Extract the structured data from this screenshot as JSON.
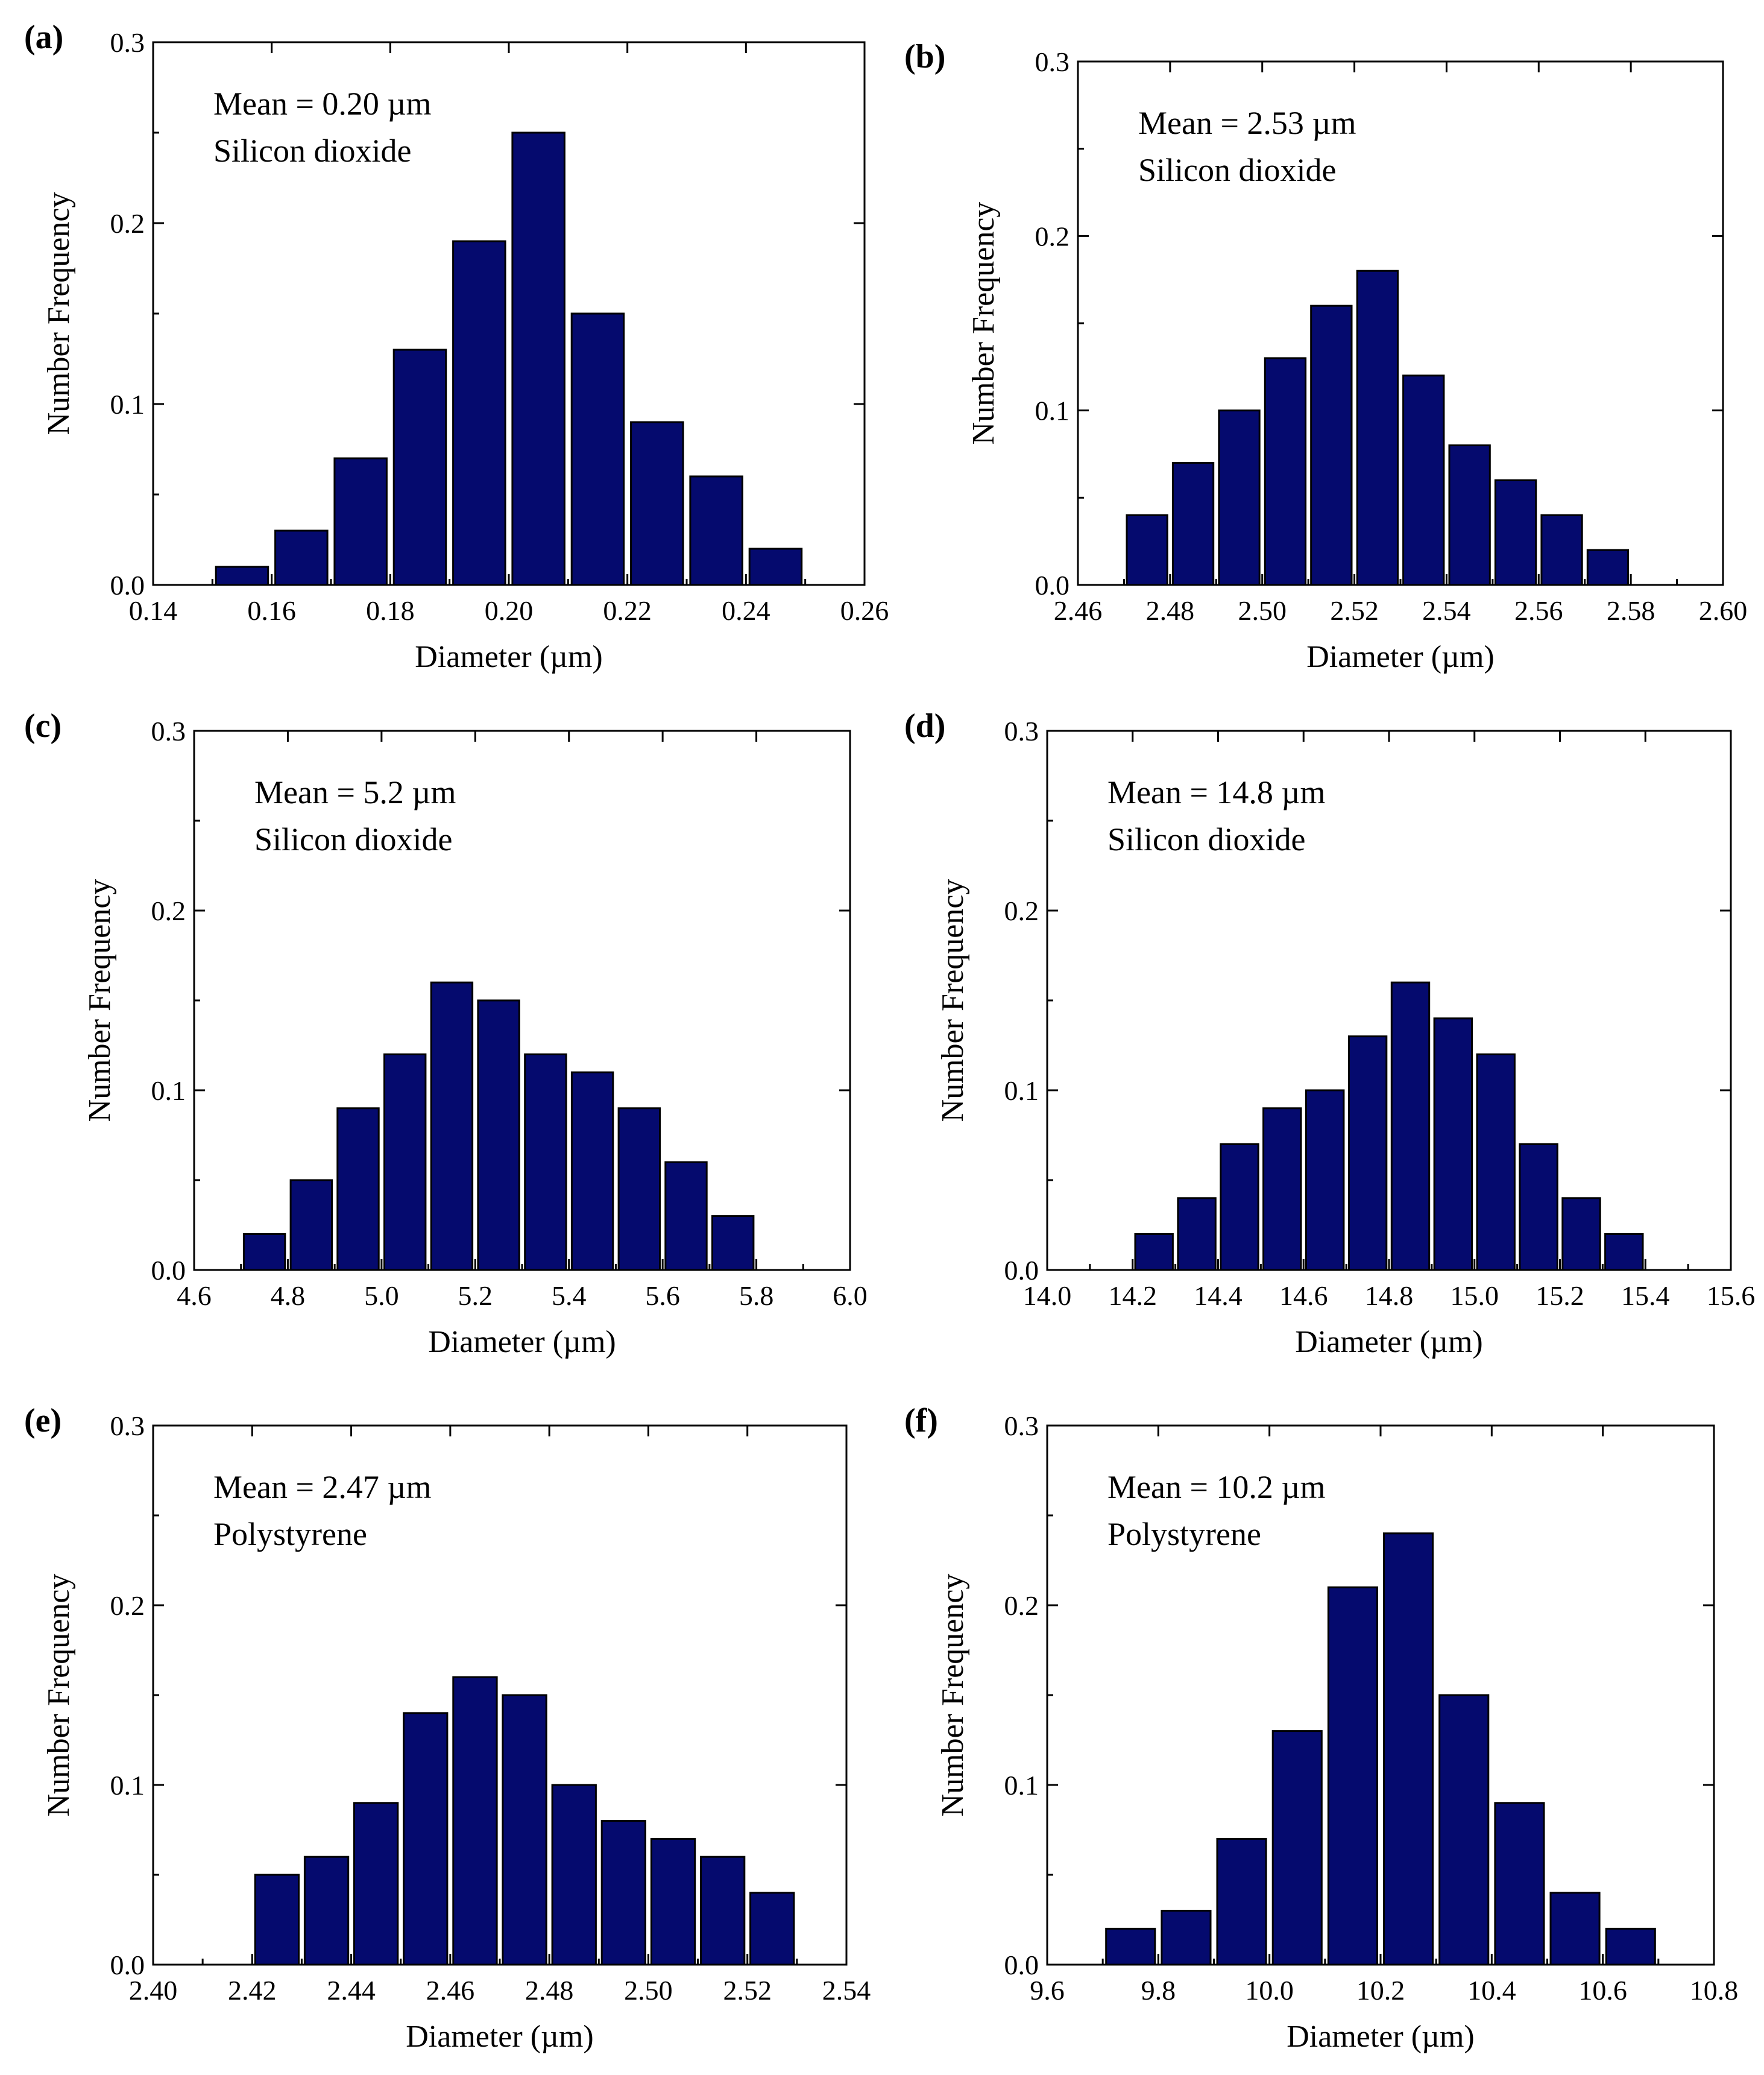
{
  "colors": {
    "bar_fill": "#050a6e",
    "bar_edge": "#000000",
    "frame": "#000000"
  },
  "chart_data": [
    {
      "type": "bar",
      "panel": "(a)",
      "xlabel": "Diameter (µm)",
      "ylabel": "Number Frequency",
      "xlim": [
        0.14,
        0.26
      ],
      "ylim": [
        0,
        0.3
      ],
      "xticks": [
        "0.14",
        "0.16",
        "0.18",
        "0.20",
        "0.22",
        "0.24",
        "0.26"
      ],
      "yticks": [
        "0.0",
        "0.1",
        "0.2",
        "0.3"
      ],
      "bin_width": 0.01,
      "bins": [
        0.15,
        0.16,
        0.17,
        0.18,
        0.19,
        0.2,
        0.21,
        0.22,
        0.23,
        0.24
      ],
      "values": [
        0.01,
        0.03,
        0.07,
        0.13,
        0.19,
        0.25,
        0.15,
        0.09,
        0.06,
        0.02
      ],
      "annotation": [
        "Mean = 0.20 µm",
        "Silicon dioxide"
      ]
    },
    {
      "type": "bar",
      "panel": "(b)",
      "xlabel": "Diameter (µm)",
      "ylabel": "Number Frequency",
      "xlim": [
        2.46,
        2.6
      ],
      "ylim": [
        0,
        0.3
      ],
      "xticks": [
        "2.46",
        "2.48",
        "2.50",
        "2.52",
        "2.54",
        "2.56",
        "2.58",
        "2.60"
      ],
      "yticks": [
        "0.0",
        "0.1",
        "0.2",
        "0.3"
      ],
      "bin_width": 0.01,
      "bins": [
        2.47,
        2.48,
        2.49,
        2.5,
        2.51,
        2.52,
        2.53,
        2.54,
        2.55,
        2.56,
        2.57
      ],
      "values": [
        0.04,
        0.07,
        0.1,
        0.13,
        0.16,
        0.18,
        0.12,
        0.08,
        0.06,
        0.04,
        0.02
      ],
      "annotation": [
        "Mean = 2.53 µm",
        "Silicon dioxide"
      ]
    },
    {
      "type": "bar",
      "panel": "(c)",
      "xlabel": "Diameter (µm)",
      "ylabel": "Number Frequency",
      "xlim": [
        4.6,
        6.0
      ],
      "ylim": [
        0,
        0.3
      ],
      "xticks": [
        "4.6",
        "4.8",
        "5.0",
        "5.2",
        "5.4",
        "5.6",
        "5.8",
        "6.0"
      ],
      "yticks": [
        "0.0",
        "0.1",
        "0.2",
        "0.3"
      ],
      "bin_width": 0.1,
      "bins": [
        4.7,
        4.8,
        4.9,
        5.0,
        5.1,
        5.2,
        5.3,
        5.4,
        5.5,
        5.6,
        5.7
      ],
      "values": [
        0.02,
        0.05,
        0.09,
        0.12,
        0.16,
        0.15,
        0.12,
        0.11,
        0.09,
        0.06,
        0.03
      ],
      "annotation": [
        "Mean = 5.2 µm",
        "Silicon dioxide"
      ]
    },
    {
      "type": "bar",
      "panel": "(d)",
      "xlabel": "Diameter (µm)",
      "ylabel": "Number Frequency",
      "xlim": [
        14.0,
        15.6
      ],
      "ylim": [
        0,
        0.3
      ],
      "xticks": [
        "14.0",
        "14.2",
        "14.4",
        "14.6",
        "14.8",
        "15.0",
        "15.2",
        "15.4",
        "15.6"
      ],
      "yticks": [
        "0.0",
        "0.1",
        "0.2",
        "0.3"
      ],
      "bin_width": 0.1,
      "bins": [
        14.2,
        14.3,
        14.4,
        14.5,
        14.6,
        14.7,
        14.8,
        14.9,
        15.0,
        15.1,
        15.2,
        15.3
      ],
      "values": [
        0.02,
        0.04,
        0.07,
        0.09,
        0.1,
        0.13,
        0.16,
        0.14,
        0.12,
        0.07,
        0.04,
        0.02
      ],
      "annotation": [
        "Mean = 14.8 µm",
        "Silicon dioxide"
      ]
    },
    {
      "type": "bar",
      "panel": "(e)",
      "xlabel": "Diameter (µm)",
      "ylabel": "Number Frequency",
      "xlim": [
        2.4,
        2.54
      ],
      "ylim": [
        0,
        0.3
      ],
      "xticks": [
        "2.40",
        "2.42",
        "2.44",
        "2.46",
        "2.48",
        "2.50",
        "2.52",
        "2.54"
      ],
      "yticks": [
        "0.0",
        "0.1",
        "0.2",
        "0.3"
      ],
      "bin_width": 0.01,
      "bins": [
        2.42,
        2.43,
        2.44,
        2.45,
        2.46,
        2.47,
        2.48,
        2.49,
        2.5,
        2.51,
        2.52
      ],
      "values": [
        0.05,
        0.06,
        0.09,
        0.14,
        0.16,
        0.15,
        0.1,
        0.08,
        0.07,
        0.06,
        0.04
      ],
      "annotation": [
        "Mean = 2.47 µm",
        "Polystyrene"
      ]
    },
    {
      "type": "bar",
      "panel": "(f)",
      "xlabel": "Diameter (µm)",
      "ylabel": "Number Frequency",
      "xlim": [
        9.6,
        10.8
      ],
      "ylim": [
        0,
        0.3
      ],
      "xticks": [
        "9.6",
        "9.8",
        "10.0",
        "10.2",
        "10.4",
        "10.6",
        "10.8"
      ],
      "yticks": [
        "0.0",
        "0.1",
        "0.2",
        "0.3"
      ],
      "bin_width": 0.1,
      "bins": [
        9.7,
        9.8,
        9.9,
        10.0,
        10.1,
        10.2,
        10.3,
        10.4,
        10.5,
        10.6
      ],
      "values": [
        0.02,
        0.03,
        0.07,
        0.13,
        0.21,
        0.24,
        0.15,
        0.09,
        0.04,
        0.02
      ],
      "annotation": [
        "Mean = 10.2 µm",
        "Polystyrene"
      ]
    }
  ]
}
